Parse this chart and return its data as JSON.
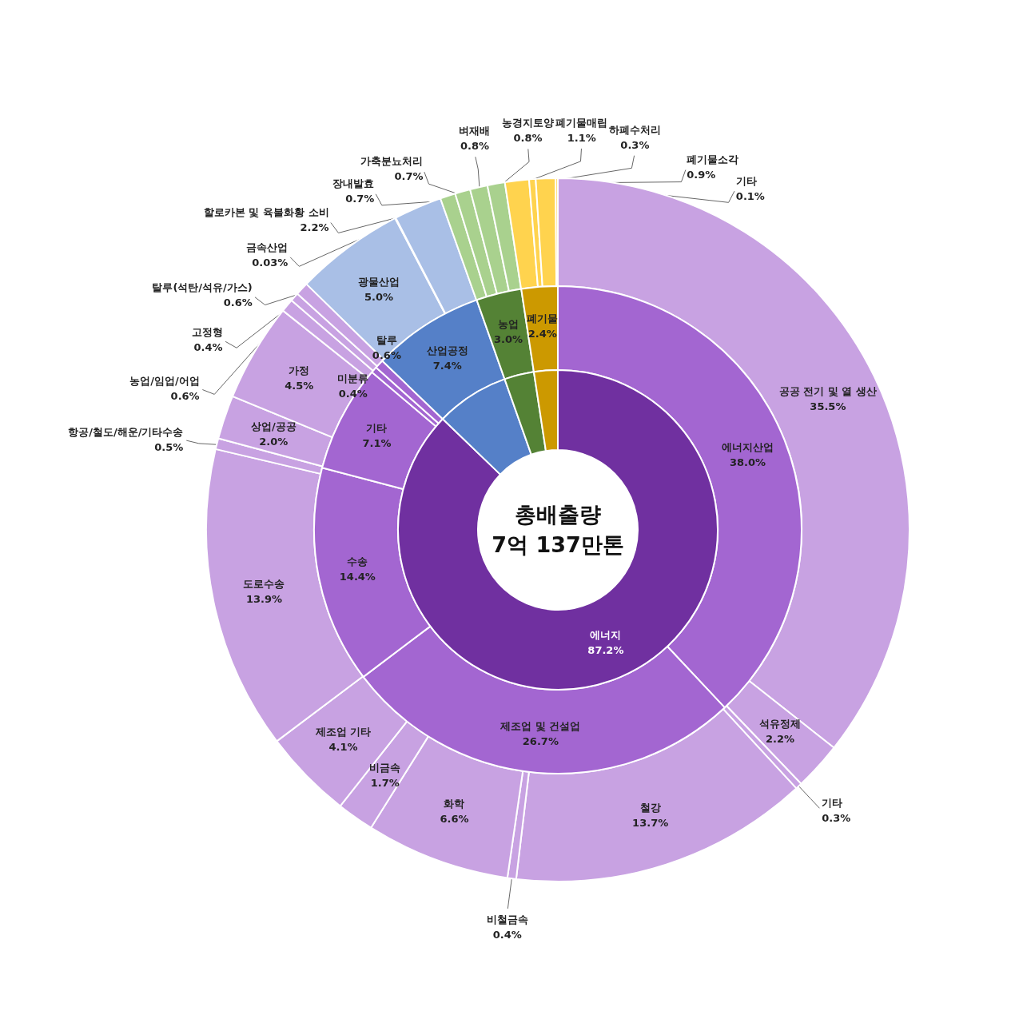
{
  "chart_data": [
    {
      "type": "donut",
      "title": "총배출량",
      "subtitle": "7억 137만톤",
      "categories": [
        "에너지",
        null,
        null,
        null
      ],
      "values": [
        87.2,
        7.4,
        3.0,
        2.4
      ],
      "colors": [
        "#7030a0",
        "#5580c8",
        "#548235",
        "#cc9900"
      ],
      "value_labels": [
        "87.2%",
        null,
        null,
        null
      ]
    },
    {
      "type": "donut",
      "categories": [
        "에너지산업",
        "제조업 및 건설업",
        "수송",
        "기타",
        "미분류",
        "탈루",
        "산업공정",
        "농업",
        "폐기물"
      ],
      "values": [
        38.0,
        26.7,
        14.4,
        7.1,
        0.4,
        0.6,
        7.4,
        3.0,
        2.4
      ],
      "colors": [
        "#a366d1",
        "#a366d1",
        "#a366d1",
        "#a366d1",
        "#a366d1",
        "#a366d1",
        "#5580c8",
        "#548235",
        "#cc9900"
      ],
      "value_labels": [
        "38.0%",
        "26.7%",
        "14.4%",
        "7.1%",
        "0.4%",
        "0.6%",
        "7.4%",
        "3.0%",
        "2.4%"
      ]
    },
    {
      "type": "donut",
      "categories": [
        "공공 전기 및 열 생산",
        "석유정제",
        "기타",
        "철강",
        "비철금속",
        "화학",
        "비금속",
        "제조업 기타",
        "도로수송",
        "항공/철도/해운/기타수송",
        "상업/공공",
        "가정",
        "농업/임업/어업",
        "고정형",
        "탈루(석탄/석유/가스)",
        "광물산업",
        "금속산업",
        "할로카본 및 육불화황 소비",
        "장내발효",
        "가축분뇨처리",
        "벼재배",
        "농경지토양",
        "폐기물매립",
        "하폐수처리",
        "폐기물소각",
        "기타"
      ],
      "values": [
        35.5,
        2.2,
        0.3,
        13.7,
        0.4,
        6.6,
        1.7,
        4.1,
        13.9,
        0.5,
        2.0,
        4.5,
        0.6,
        0.4,
        0.6,
        5.0,
        0.03,
        2.2,
        0.7,
        0.7,
        0.8,
        0.8,
        1.1,
        0.3,
        0.9,
        0.1
      ],
      "colors": [
        "#c8a2e2",
        "#c8a2e2",
        "#c8a2e2",
        "#c8a2e2",
        "#c8a2e2",
        "#c8a2e2",
        "#c8a2e2",
        "#c8a2e2",
        "#c8a2e2",
        "#c8a2e2",
        "#c8a2e2",
        "#c8a2e2",
        "#c8a2e2",
        "#c8a2e2",
        "#c8a2e2",
        "#a9bfe6",
        "#a9bfe6",
        "#a9bfe6",
        "#a9d18e",
        "#a9d18e",
        "#a9d18e",
        "#a9d18e",
        "#ffd34e",
        "#ffd34e",
        "#ffd34e",
        "#ffd34e"
      ],
      "value_labels": [
        "35.5%",
        "2.2%",
        "0.3%",
        "13.7%",
        "0.4%",
        "6.6%",
        "1.7%",
        "4.1%",
        "13.9%",
        "0.5%",
        "2.0%",
        "4.5%",
        "0.6%",
        "0.4%",
        "0.6%",
        "5.0%",
        "0.03%",
        "2.2%",
        "0.7%",
        "0.7%",
        "0.8%",
        "0.8%",
        "1.1%",
        "0.3%",
        "0.9%",
        "0.1%"
      ]
    }
  ]
}
